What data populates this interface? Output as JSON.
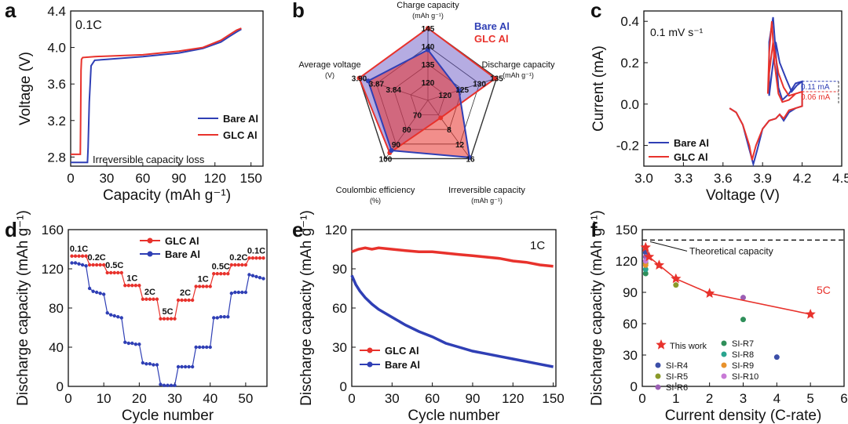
{
  "colors": {
    "red": "#e8322c",
    "blue": "#2f3fb5",
    "purple": "#8a5aa8",
    "dark": "#222222"
  },
  "panel_letters": [
    "a",
    "b",
    "c",
    "d",
    "e",
    "f"
  ],
  "chart_data": [
    {
      "id": "a",
      "type": "line",
      "xlabel": "Capacity (mAh g⁻¹)",
      "ylabel": "Voltage (V)",
      "xlim": [
        0,
        160
      ],
      "ylim": [
        2.7,
        4.4
      ],
      "xticks": [
        0,
        30,
        60,
        90,
        120,
        150
      ],
      "yticks": [
        2.8,
        3.2,
        3.6,
        4.0,
        4.4
      ],
      "xtick_labels": [
        "0",
        "30",
        "60",
        "90",
        "120",
        "150"
      ],
      "ytick_labels": [
        "2.8",
        "3.2",
        "3.6",
        "4.0",
        "4.4"
      ],
      "annotation": "0.1C",
      "loss_label": "Irreversible capacity loss",
      "series": [
        {
          "name": "Bare Al",
          "color": "blue",
          "x": [
            0,
            14,
            14.5,
            15.5,
            17,
            20,
            30,
            60,
            90,
            110,
            125,
            132,
            138,
            142
          ],
          "y": [
            2.74,
            2.74,
            2.9,
            3.4,
            3.8,
            3.86,
            3.87,
            3.9,
            3.94,
            3.99,
            4.06,
            4.12,
            4.17,
            4.2
          ]
        },
        {
          "name": "GLC Al",
          "color": "red",
          "x": [
            0,
            8,
            8.3,
            8.6,
            9,
            10,
            20,
            60,
            90,
            110,
            125,
            132,
            138,
            142
          ],
          "y": [
            2.83,
            2.83,
            3.2,
            3.75,
            3.87,
            3.89,
            3.9,
            3.92,
            3.96,
            4.0,
            4.08,
            4.14,
            4.19,
            4.21
          ]
        }
      ]
    },
    {
      "id": "b",
      "type": "radar",
      "axes": [
        {
          "name": "Charge capacity",
          "unit": "(mAh g⁻¹)",
          "ticks": [
            "120",
            "135",
            "140",
            "145"
          ]
        },
        {
          "name": "Discharge capacity",
          "unit": "(mAh g⁻¹)",
          "ticks": [
            "120",
            "125",
            "130",
            "135"
          ]
        },
        {
          "name": "Irreversible capacity",
          "unit": "(mAh g⁻¹)",
          "ticks": [
            "8",
            "12",
            "16"
          ]
        },
        {
          "name": "Coulombic efficiency",
          "unit": "(%)",
          "ticks": [
            "70",
            "80",
            "90",
            "100"
          ]
        },
        {
          "name": "Average voltage",
          "unit": "(V)",
          "ticks": [
            "3.84",
            "3.87",
            "3.90"
          ]
        }
      ],
      "series": [
        {
          "name": "Bare Al",
          "color": "blue",
          "values": [
            0.7,
            0.45,
            0.98,
            0.86,
            0.87
          ]
        },
        {
          "name": "GLC Al",
          "color": "red",
          "values": [
            1.0,
            0.98,
            0.3,
            0.9,
            1.0
          ]
        }
      ]
    },
    {
      "id": "c",
      "type": "line",
      "xlabel": "Voltage (V)",
      "ylabel": "Current (mA)",
      "xlim": [
        3.0,
        4.5
      ],
      "ylim": [
        -0.3,
        0.45
      ],
      "xticks": [
        3.0,
        3.3,
        3.6,
        3.9,
        4.2,
        4.5
      ],
      "yticks": [
        -0.2,
        0.0,
        0.2,
        0.4
      ],
      "xtick_labels": [
        "3.0",
        "3.3",
        "3.6",
        "3.9",
        "4.2",
        "4.5"
      ],
      "ytick_labels": [
        "-0.2",
        "0.0",
        "0.2",
        "0.4"
      ],
      "annotation": "0.1 mV s⁻¹",
      "marker_labels": [
        "0.11 mA",
        "0.06 mA"
      ],
      "series": [
        {
          "name": "Bare Al",
          "color": "blue",
          "x": [
            3.65,
            3.7,
            3.75,
            3.8,
            3.83,
            3.86,
            3.9,
            3.95,
            4.0,
            4.03,
            4.06,
            4.1,
            4.15,
            4.2,
            4.2,
            4.15,
            4.1,
            4.05,
            4.02,
            4.0,
            3.98,
            3.95,
            3.95,
            3.95,
            3.97,
            4.0,
            4.03,
            4.08,
            4.12,
            4.16,
            4.2
          ],
          "y": [
            -0.02,
            -0.04,
            -0.1,
            -0.22,
            -0.29,
            -0.22,
            -0.12,
            -0.08,
            -0.07,
            -0.05,
            -0.08,
            -0.04,
            -0.02,
            -0.01,
            0.11,
            0.1,
            0.05,
            0.02,
            0.08,
            0.25,
            0.42,
            0.3,
            0.08,
            0.04,
            0.15,
            0.3,
            0.2,
            0.12,
            0.06,
            0.09,
            0.11
          ]
        },
        {
          "name": "GLC Al",
          "color": "red",
          "x": [
            3.65,
            3.7,
            3.75,
            3.8,
            3.82,
            3.85,
            3.9,
            3.95,
            4.0,
            4.03,
            4.06,
            4.1,
            4.15,
            4.2,
            4.2,
            4.15,
            4.1,
            4.05,
            4.02,
            3.99,
            3.97,
            3.95,
            3.94,
            3.94,
            3.95,
            3.98,
            4.02,
            4.06,
            4.1,
            4.15,
            4.2
          ],
          "y": [
            -0.02,
            -0.04,
            -0.1,
            -0.2,
            -0.27,
            -0.2,
            -0.12,
            -0.08,
            -0.07,
            -0.05,
            -0.07,
            -0.03,
            -0.02,
            -0.01,
            0.06,
            0.05,
            0.02,
            0.01,
            0.05,
            0.2,
            0.4,
            0.25,
            0.05,
            0.05,
            0.15,
            0.3,
            0.15,
            0.08,
            0.04,
            0.05,
            0.06
          ]
        }
      ]
    },
    {
      "id": "d",
      "type": "scatter-line",
      "xlabel": "Cycle number",
      "ylabel": "Discharge capacity (mAh g⁻¹)",
      "xlim": [
        0,
        56
      ],
      "ylim": [
        0,
        160
      ],
      "xticks": [
        0,
        10,
        20,
        30,
        40,
        50
      ],
      "yticks": [
        0,
        40,
        80,
        120,
        160
      ],
      "xtick_labels": [
        "0",
        "10",
        "20",
        "30",
        "40",
        "50"
      ],
      "ytick_labels": [
        "0",
        "40",
        "80",
        "120",
        "160"
      ],
      "rate_labels": [
        "0.1C",
        "0.2C",
        "0.5C",
        "1C",
        "2C",
        "5C",
        "2C",
        "1C",
        "0.5C",
        "0.2C",
        "0.1C"
      ],
      "series": [
        {
          "name": "GLC Al",
          "color": "red",
          "marker": "circle",
          "y": [
            133,
            133,
            133,
            133,
            133,
            124,
            124,
            124,
            124,
            124,
            116,
            116,
            116,
            116,
            116,
            103,
            103,
            103,
            103,
            103,
            89,
            89,
            89,
            89,
            89,
            69,
            69,
            69,
            69,
            69,
            88,
            88,
            88,
            88,
            88,
            102,
            102,
            102,
            102,
            102,
            115,
            115,
            115,
            115,
            115,
            124,
            124,
            124,
            124,
            124,
            131,
            131,
            131,
            131,
            131
          ]
        },
        {
          "name": "Bare Al",
          "color": "blue",
          "marker": "circle",
          "y": [
            126,
            126,
            125,
            124,
            123,
            100,
            97,
            96,
            95,
            94,
            75,
            73,
            72,
            71,
            70,
            45,
            44,
            44,
            43,
            43,
            24,
            23,
            23,
            22,
            22,
            2,
            1,
            1,
            1,
            1,
            20,
            20,
            20,
            20,
            20,
            40,
            40,
            40,
            40,
            40,
            70,
            70,
            71,
            71,
            71,
            95,
            96,
            96,
            96,
            96,
            114,
            113,
            112,
            111,
            110
          ]
        }
      ]
    },
    {
      "id": "e",
      "type": "scatter-line",
      "xlabel": "Cycle number",
      "ylabel": "Discharge capacity (mAh g⁻¹)",
      "xlim": [
        0,
        152
      ],
      "ylim": [
        0,
        120
      ],
      "xticks": [
        0,
        30,
        60,
        90,
        120,
        150
      ],
      "yticks": [
        0,
        30,
        60,
        90,
        120
      ],
      "xtick_labels": [
        "0",
        "30",
        "60",
        "90",
        "120",
        "150"
      ],
      "ytick_labels": [
        "0",
        "30",
        "60",
        "90",
        "120"
      ],
      "annotation": "1C",
      "series": [
        {
          "name": "GLC Al",
          "color": "red",
          "x": [
            0,
            5,
            10,
            15,
            20,
            30,
            40,
            50,
            60,
            70,
            80,
            90,
            100,
            110,
            120,
            130,
            140,
            150
          ],
          "y": [
            103,
            105,
            106,
            105,
            106,
            105,
            104,
            103,
            103,
            102,
            101,
            100,
            99,
            98,
            96,
            95,
            93,
            92
          ]
        },
        {
          "name": "Bare Al",
          "color": "blue",
          "x": [
            0,
            3,
            6,
            10,
            15,
            20,
            30,
            40,
            50,
            60,
            70,
            80,
            90,
            100,
            110,
            120,
            130,
            140,
            150
          ],
          "y": [
            85,
            78,
            73,
            68,
            63,
            59,
            53,
            47,
            42,
            38,
            33,
            30,
            27,
            25,
            23,
            21,
            19,
            17,
            15
          ]
        }
      ]
    },
    {
      "id": "f",
      "type": "scatter",
      "xlabel": "Current density (C-rate)",
      "ylabel": "Discharge capacity (mAh g⁻¹)",
      "xlim": [
        0,
        6
      ],
      "ylim": [
        0,
        150
      ],
      "xticks": [
        0,
        1,
        2,
        3,
        4,
        5,
        6
      ],
      "yticks": [
        0,
        30,
        60,
        90,
        120,
        150
      ],
      "xtick_labels": [
        "0",
        "1",
        "2",
        "3",
        "4",
        "5",
        "6"
      ],
      "ytick_labels": [
        "0",
        "30",
        "60",
        "90",
        "120",
        "150"
      ],
      "theoretical": {
        "label": "Theoretical capacity",
        "value": 140
      },
      "annotation_5c": "5C",
      "this_work": {
        "name": "This work",
        "x": [
          0.1,
          0.2,
          0.5,
          1,
          2,
          5
        ],
        "y": [
          133,
          124,
          116,
          103,
          89,
          69
        ]
      },
      "others": [
        {
          "name": "SI-R4",
          "color": "#3c4fa8",
          "x": [
            0.1,
            4
          ],
          "y": [
            128,
            28
          ]
        },
        {
          "name": "SI-R5",
          "color": "#8a9a2a",
          "x": [
            0.1,
            1
          ],
          "y": [
            118,
            97
          ]
        },
        {
          "name": "SI-R6",
          "color": "#9b5fb5",
          "x": [
            0.1,
            3
          ],
          "y": [
            124,
            85
          ]
        },
        {
          "name": "SI-R7",
          "color": "#2f8f5a",
          "x": [
            0.1,
            3
          ],
          "y": [
            108,
            64
          ]
        },
        {
          "name": "SI-R8",
          "color": "#2aa58f",
          "x": [
            0.1
          ],
          "y": [
            112
          ]
        },
        {
          "name": "SI-R9",
          "color": "#e8922c",
          "x": [
            0.1
          ],
          "y": [
            116
          ]
        },
        {
          "name": "SI-R10",
          "color": "#c87ad6",
          "x": [
            0.1
          ],
          "y": [
            120
          ]
        }
      ]
    }
  ]
}
